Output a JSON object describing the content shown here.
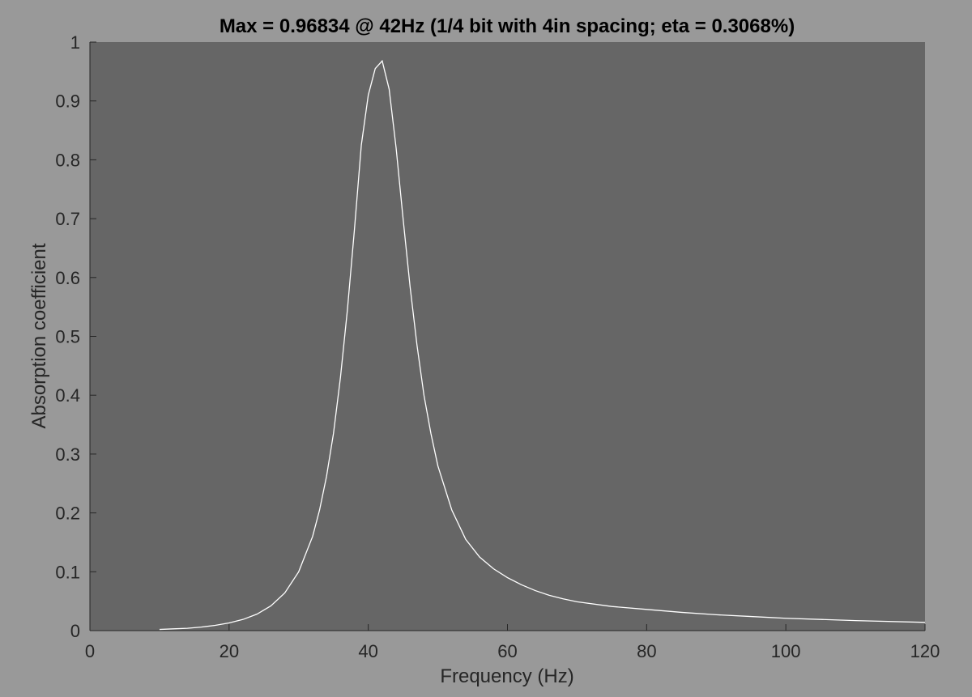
{
  "chart_data": {
    "type": "line",
    "title": "Max = 0.96834 @ 42Hz (1/4 bit with 4in spacing; eta = 0.3068%)",
    "xlabel": "Frequency (Hz)",
    "ylabel": "Absorption coefficient",
    "xlim": [
      0,
      120
    ],
    "ylim": [
      0,
      1
    ],
    "xticks": [
      0,
      20,
      40,
      60,
      80,
      100,
      120
    ],
    "xtick_labels": [
      "0",
      "20",
      "40",
      "60",
      "80",
      "100",
      "120"
    ],
    "yticks": [
      0,
      0.1,
      0.2,
      0.3,
      0.4,
      0.5,
      0.6,
      0.7,
      0.8,
      0.9,
      1
    ],
    "ytick_labels": [
      "0",
      "0.1",
      "0.2",
      "0.3",
      "0.4",
      "0.5",
      "0.6",
      "0.7",
      "0.8",
      "0.9",
      "1"
    ],
    "grid": false,
    "legend": "none",
    "colors": {
      "figure_background": "#999999",
      "axes_background": "#666666",
      "line": "#ffffff",
      "axis_text": "#262626",
      "title_text": "#000000"
    },
    "series": [
      {
        "x": [
          10,
          12,
          14,
          16,
          18,
          20,
          22,
          24,
          26,
          28,
          30,
          32,
          33,
          34,
          35,
          36,
          37,
          38,
          39,
          40,
          41,
          42,
          43,
          44,
          45,
          46,
          47,
          48,
          49,
          50,
          52,
          54,
          56,
          58,
          60,
          62,
          64,
          66,
          68,
          70,
          75,
          80,
          85,
          90,
          95,
          100,
          110,
          120
        ],
        "y": [
          0.002,
          0.003,
          0.004,
          0.006,
          0.009,
          0.013,
          0.019,
          0.028,
          0.042,
          0.064,
          0.1,
          0.16,
          0.205,
          0.262,
          0.335,
          0.43,
          0.545,
          0.68,
          0.825,
          0.91,
          0.955,
          0.968,
          0.92,
          0.82,
          0.7,
          0.585,
          0.485,
          0.4,
          0.335,
          0.28,
          0.205,
          0.155,
          0.125,
          0.105,
          0.09,
          0.078,
          0.068,
          0.06,
          0.054,
          0.049,
          0.041,
          0.036,
          0.031,
          0.027,
          0.024,
          0.021,
          0.017,
          0.014
        ]
      }
    ]
  }
}
